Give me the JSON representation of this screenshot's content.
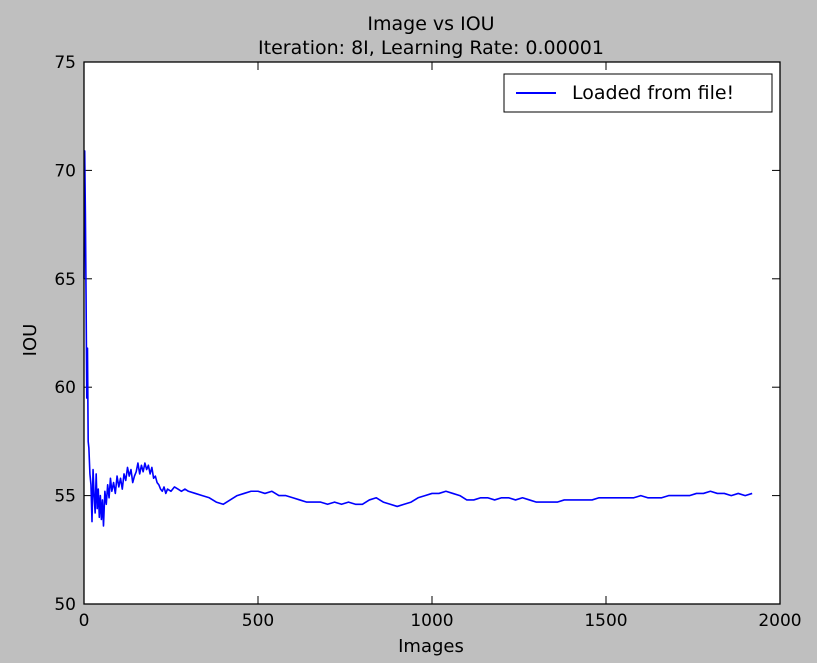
{
  "chart_data": {
    "type": "line",
    "title": "Image vs IOU",
    "subtitle": "Iteration: 8I, Learning Rate: 0.00001",
    "xlabel": "Images",
    "ylabel": "IOU",
    "xlim": [
      0,
      2000
    ],
    "ylim": [
      50,
      75
    ],
    "xticks": [
      0,
      500,
      1000,
      1500,
      2000
    ],
    "yticks": [
      50,
      55,
      60,
      65,
      70,
      75
    ],
    "grid": false,
    "legend_position": "top-right",
    "series": [
      {
        "name": "Loaded from file!",
        "color": "#0000ff",
        "x": [
          0,
          2,
          4,
          6,
          8,
          10,
          12,
          14,
          17,
          20,
          23,
          26,
          29,
          32,
          35,
          38,
          41,
          44,
          47,
          50,
          53,
          56,
          60,
          64,
          68,
          72,
          76,
          80,
          85,
          90,
          95,
          100,
          105,
          110,
          115,
          120,
          125,
          130,
          135,
          140,
          145,
          150,
          155,
          160,
          165,
          170,
          175,
          180,
          185,
          190,
          195,
          200,
          205,
          210,
          215,
          220,
          225,
          230,
          235,
          240,
          250,
          260,
          270,
          280,
          290,
          300,
          320,
          340,
          360,
          380,
          400,
          420,
          440,
          460,
          480,
          500,
          520,
          540,
          560,
          580,
          600,
          620,
          640,
          660,
          680,
          700,
          720,
          740,
          760,
          780,
          800,
          820,
          840,
          860,
          880,
          900,
          920,
          940,
          960,
          980,
          1000,
          1020,
          1040,
          1060,
          1080,
          1100,
          1120,
          1140,
          1160,
          1180,
          1200,
          1220,
          1240,
          1260,
          1280,
          1300,
          1320,
          1340,
          1360,
          1380,
          1400,
          1420,
          1440,
          1460,
          1480,
          1500,
          1520,
          1540,
          1560,
          1580,
          1600,
          1620,
          1640,
          1660,
          1680,
          1700,
          1720,
          1740,
          1760,
          1780,
          1800,
          1820,
          1840,
          1860,
          1880,
          1900,
          1920
        ],
        "values": [
          65.0,
          70.9,
          68.0,
          64.0,
          59.5,
          61.8,
          57.5,
          57.2,
          56.0,
          55.5,
          53.8,
          56.2,
          55.0,
          54.2,
          56.0,
          54.4,
          55.3,
          54.0,
          55.0,
          53.9,
          54.8,
          53.6,
          55.2,
          54.6,
          55.5,
          54.9,
          55.8,
          55.2,
          55.6,
          55.1,
          55.9,
          55.4,
          55.8,
          55.3,
          56.0,
          55.7,
          56.3,
          55.9,
          56.2,
          55.6,
          55.9,
          56.1,
          56.5,
          56.0,
          56.4,
          56.1,
          56.5,
          56.2,
          56.4,
          56.0,
          56.3,
          55.8,
          55.9,
          55.6,
          55.5,
          55.3,
          55.2,
          55.4,
          55.1,
          55.3,
          55.2,
          55.4,
          55.3,
          55.2,
          55.3,
          55.2,
          55.1,
          55.0,
          54.9,
          54.7,
          54.6,
          54.8,
          55.0,
          55.1,
          55.2,
          55.2,
          55.1,
          55.2,
          55.0,
          55.0,
          54.9,
          54.8,
          54.7,
          54.7,
          54.7,
          54.6,
          54.7,
          54.6,
          54.7,
          54.6,
          54.6,
          54.8,
          54.9,
          54.7,
          54.6,
          54.5,
          54.6,
          54.7,
          54.9,
          55.0,
          55.1,
          55.1,
          55.2,
          55.1,
          55.0,
          54.8,
          54.8,
          54.9,
          54.9,
          54.8,
          54.9,
          54.9,
          54.8,
          54.9,
          54.8,
          54.7,
          54.7,
          54.7,
          54.7,
          54.8,
          54.8,
          54.8,
          54.8,
          54.8,
          54.9,
          54.9,
          54.9,
          54.9,
          54.9,
          54.9,
          55.0,
          54.9,
          54.9,
          54.9,
          55.0,
          55.0,
          55.0,
          55.0,
          55.1,
          55.1,
          55.2,
          55.1,
          55.1,
          55.0,
          55.1,
          55.0,
          55.1
        ]
      }
    ]
  }
}
